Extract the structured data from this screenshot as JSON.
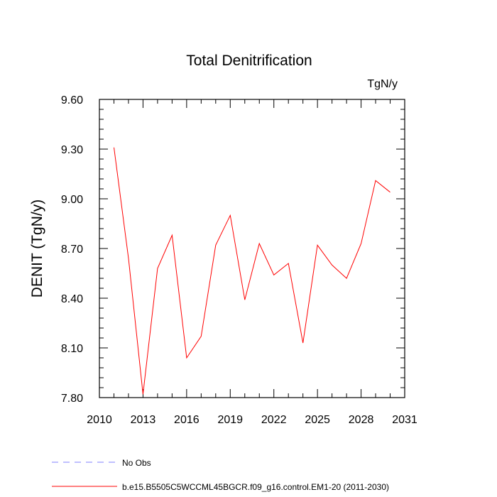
{
  "chart_data": {
    "type": "line",
    "title": "Total Denitrification",
    "units_label": "TgN/y",
    "ylabel": "DENIT  (TgN/y)",
    "xlabel": "",
    "xlim": [
      2010,
      2031
    ],
    "ylim": [
      7.8,
      9.6
    ],
    "x_ticks": [
      "2010",
      "2013",
      "2016",
      "2019",
      "2022",
      "2025",
      "2028",
      "2031"
    ],
    "x_tick_values": [
      2010,
      2013,
      2016,
      2019,
      2022,
      2025,
      2028,
      2031
    ],
    "y_ticks": [
      "7.80",
      "8.10",
      "8.40",
      "8.70",
      "9.00",
      "9.30",
      "9.60"
    ],
    "y_tick_values": [
      7.8,
      8.1,
      8.4,
      8.7,
      9.0,
      9.3,
      9.6
    ],
    "series": [
      {
        "name": "b.e15.B5505C5WCCML45BGCR.f09_g16.control.EM1-20 (2011-2030)",
        "color": "#ff0000",
        "dash": "solid",
        "x": [
          2011,
          2012,
          2013,
          2014,
          2015,
          2016,
          2017,
          2018,
          2019,
          2020,
          2021,
          2022,
          2023,
          2024,
          2025,
          2026,
          2027,
          2028,
          2029,
          2030
        ],
        "values": [
          9.31,
          8.64,
          7.82,
          8.58,
          8.78,
          8.04,
          8.17,
          8.72,
          8.9,
          8.39,
          8.73,
          8.54,
          8.61,
          8.13,
          8.72,
          8.6,
          8.52,
          8.73,
          9.11,
          9.04
        ]
      }
    ],
    "legend": [
      {
        "label": "No Obs",
        "color": "#8080ff",
        "dash": "dashed"
      },
      {
        "label": "b.e15.B5505C5WCCML45BGCR.f09_g16.control.EM1-20 (2011-2030)",
        "color": "#ff0000",
        "dash": "solid"
      }
    ]
  }
}
